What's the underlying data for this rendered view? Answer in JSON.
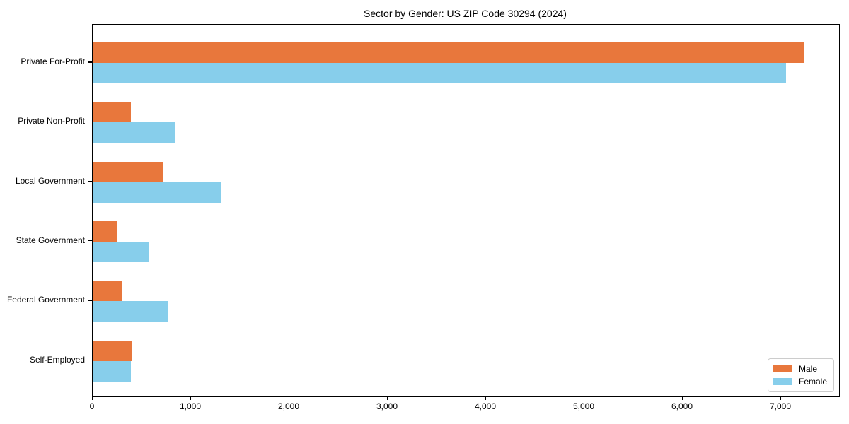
{
  "title": "Sector by Gender: US ZIP Code 30294 (2024)",
  "colors": {
    "male": "#e8773c",
    "female": "#87ceeb",
    "axis": "#000000",
    "legend_border": "#cccccc"
  },
  "chart_data": {
    "type": "bar",
    "orientation": "horizontal",
    "title": "Sector by Gender: US ZIP Code 30294 (2024)",
    "categories": [
      "Private For-Profit",
      "Private Non-Profit",
      "Local Government",
      "State Government",
      "Federal Government",
      "Self-Employed"
    ],
    "series": [
      {
        "name": "Male",
        "color": "#e8773c",
        "values": [
          7240,
          390,
          710,
          250,
          300,
          400
        ]
      },
      {
        "name": "Female",
        "color": "#87ceeb",
        "values": [
          7050,
          835,
          1300,
          575,
          770,
          390
        ]
      }
    ],
    "xlabel": "",
    "ylabel": "",
    "xlim": [
      0,
      7590
    ],
    "xticks": [
      0,
      1000,
      2000,
      3000,
      4000,
      5000,
      6000,
      7000
    ],
    "xtick_labels": [
      "0",
      "1,000",
      "2,000",
      "3,000",
      "4,000",
      "5,000",
      "6,000",
      "7,000"
    ],
    "legend_position": "lower right",
    "grid": false
  }
}
